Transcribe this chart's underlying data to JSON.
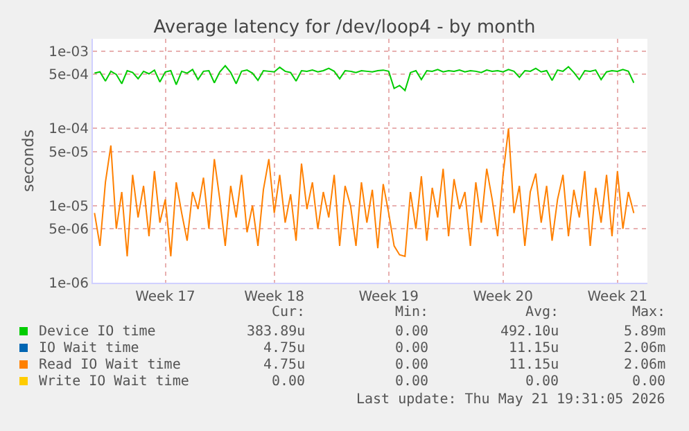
{
  "chart_data": {
    "type": "line",
    "title": "Average latency for /dev/loop4 - by month",
    "ylabel": "seconds",
    "log": "y",
    "grid": true,
    "legend": "bottom left",
    "marker": "none",
    "line_style": "solid",
    "ylim": [
      1e-06,
      0.00145
    ],
    "yticks": [
      {
        "value": 1e-06,
        "label": "1e-06"
      },
      {
        "value": 5e-06,
        "label": "5e-06"
      },
      {
        "value": 1e-05,
        "label": "1e-05"
      },
      {
        "value": 5e-05,
        "label": "5e-05"
      },
      {
        "value": 0.0001,
        "label": "1e-04"
      },
      {
        "value": 0.0005,
        "label": "5e-04"
      },
      {
        "value": 0.001,
        "label": "1e-03"
      }
    ],
    "categories": [
      null,
      null,
      null,
      null,
      null,
      null,
      null,
      null,
      null,
      null,
      null,
      null,
      null,
      "Week 17",
      null,
      null,
      null,
      null,
      null,
      null,
      null,
      null,
      null,
      null,
      null,
      null,
      null,
      null,
      null,
      null,
      null,
      null,
      null,
      "Week 18",
      null,
      null,
      null,
      null,
      null,
      null,
      null,
      null,
      null,
      null,
      null,
      null,
      null,
      null,
      null,
      null,
      null,
      null,
      null,
      null,
      "Week 19",
      null,
      null,
      null,
      null,
      null,
      null,
      null,
      null,
      null,
      null,
      null,
      null,
      null,
      null,
      null,
      null,
      null,
      null,
      null,
      null,
      "Week 20",
      null,
      null,
      null,
      null,
      null,
      null,
      null,
      null,
      null,
      null,
      null,
      null,
      null,
      null,
      null,
      null,
      null,
      null,
      null,
      null,
      "Week 21",
      null,
      null,
      null
    ],
    "series": [
      {
        "name": "Device IO time",
        "color": "#00cc00",
        "values": [
          0.00052,
          0.00054,
          0.00041,
          0.00055,
          0.0005,
          0.00038,
          0.00056,
          0.00053,
          0.00044,
          0.00055,
          0.00051,
          0.00057,
          0.0004,
          0.00054,
          0.00056,
          0.00037,
          0.00055,
          0.00052,
          0.00058,
          0.00043,
          0.00055,
          0.00056,
          0.00039,
          0.00054,
          0.00065,
          0.00053,
          0.00038,
          0.00055,
          0.00057,
          0.00052,
          0.00042,
          0.00056,
          0.00055,
          0.00054,
          0.00062,
          0.00055,
          0.00053,
          0.00041,
          0.00056,
          0.00055,
          0.00057,
          0.00054,
          0.00056,
          0.0006,
          0.00055,
          0.00044,
          0.00056,
          0.00055,
          0.00053,
          0.00056,
          0.00055,
          0.00054,
          0.00056,
          0.00057,
          0.00055,
          0.00033,
          0.00036,
          0.00031,
          0.00053,
          0.00056,
          0.00043,
          0.00056,
          0.00055,
          0.00058,
          0.00054,
          0.00056,
          0.00055,
          0.00057,
          0.00054,
          0.00056,
          0.00055,
          0.00053,
          0.00057,
          0.00055,
          0.00056,
          0.00054,
          0.00058,
          0.00055,
          0.00046,
          0.00056,
          0.00055,
          0.0006,
          0.00054,
          0.00056,
          0.00042,
          0.00057,
          0.00055,
          0.00063,
          0.00053,
          0.00043,
          0.00056,
          0.00055,
          0.00057,
          0.00043,
          0.00054,
          0.00056,
          0.00055,
          0.00058,
          0.00055,
          0.00039
        ]
      },
      {
        "name": "IO Wait time",
        "color": "#0066b3",
        "values": [
          null,
          null,
          null,
          null,
          null,
          null,
          null,
          null,
          null,
          null,
          null,
          null,
          null,
          null,
          null,
          null,
          null,
          null,
          null,
          null,
          null,
          null,
          null,
          null,
          null,
          null,
          null,
          null,
          null,
          null,
          null,
          null,
          null,
          null,
          null,
          null,
          null,
          null,
          null,
          null,
          null,
          null,
          null,
          null,
          null,
          null,
          null,
          null,
          null,
          null,
          null,
          null,
          null,
          null,
          null,
          null,
          null,
          null,
          null,
          null,
          null,
          null,
          null,
          null,
          null,
          null,
          null,
          null,
          null,
          null,
          null,
          null,
          null,
          null,
          null,
          null,
          null,
          null,
          null,
          null,
          null,
          null,
          null,
          null,
          null,
          null,
          null,
          null,
          null,
          null,
          null,
          null,
          null,
          null,
          null,
          null,
          null,
          null,
          null,
          null
        ]
      },
      {
        "name": "Read IO Wait time",
        "color": "#ff8000",
        "values": [
          8e-06,
          3e-06,
          2e-05,
          6e-05,
          5e-06,
          1.5e-05,
          2.2e-06,
          2.5e-05,
          7e-06,
          1.8e-05,
          4e-06,
          2.8e-05,
          6e-06,
          1.2e-05,
          2.2e-06,
          2e-05,
          8e-06,
          3.5e-06,
          1.5e-05,
          9e-06,
          2.3e-05,
          5e-06,
          4e-05,
          1.2e-05,
          3e-06,
          1.8e-05,
          7e-06,
          2.5e-05,
          4.5e-06,
          1e-05,
          3e-06,
          1.6e-05,
          4e-05,
          8e-06,
          2.5e-05,
          6e-06,
          1.4e-05,
          3.5e-06,
          3.5e-05,
          9e-06,
          2e-05,
          5e-06,
          1.5e-05,
          7e-06,
          2.5e-05,
          3e-06,
          1.8e-05,
          1e-05,
          3e-06,
          2e-05,
          6e-06,
          1.6e-05,
          2.8e-06,
          1.9e-05,
          8e-06,
          3e-06,
          2.3e-06,
          2.2e-06,
          1.5e-05,
          5e-06,
          2.4e-05,
          3.5e-06,
          1.7e-05,
          7e-06,
          3e-05,
          4e-06,
          2.2e-05,
          9e-06,
          1.5e-05,
          3e-06,
          2e-05,
          6e-06,
          3e-05,
          1.2e-05,
          4e-06,
          2.5e-05,
          0.0001,
          8e-06,
          1.8e-05,
          3e-06,
          1.5e-05,
          2.6e-05,
          6e-06,
          1.8e-05,
          3.5e-06,
          1.2e-05,
          2.5e-05,
          4e-06,
          1.6e-05,
          7e-06,
          2.8e-05,
          3e-06,
          1.7e-05,
          6e-06,
          2.5e-05,
          4e-06,
          2.8e-05,
          5e-06,
          1.5e-05,
          8e-06
        ]
      },
      {
        "name": "Write IO Wait time",
        "color": "#ffcc00",
        "values": [
          null,
          null,
          null,
          null,
          null,
          null,
          null,
          null,
          null,
          null,
          null,
          null,
          null,
          null,
          null,
          null,
          null,
          null,
          null,
          null,
          null,
          null,
          null,
          null,
          null,
          null,
          null,
          null,
          null,
          null,
          null,
          null,
          null,
          null,
          null,
          null,
          null,
          null,
          null,
          null,
          null,
          null,
          null,
          null,
          null,
          null,
          null,
          null,
          null,
          null,
          null,
          null,
          null,
          null,
          null,
          null,
          null,
          null,
          null,
          null,
          null,
          null,
          null,
          null,
          null,
          null,
          null,
          null,
          null,
          null,
          null,
          null,
          null,
          null,
          null,
          null,
          null,
          null,
          null,
          null,
          null,
          null,
          null,
          null,
          null,
          null,
          null,
          null,
          null,
          null,
          null,
          null,
          null,
          null,
          null,
          null,
          null,
          null,
          null,
          null
        ]
      }
    ],
    "annotations": [
      "Cur:",
      "Min:",
      "Avg:",
      "Max:",
      "383.89u",
      "0.00",
      "492.10u",
      "5.89m",
      "4.75u",
      "0.00",
      "11.15u",
      "2.06m",
      "4.75u",
      "0.00",
      "11.15u",
      "2.06m",
      "0.00",
      "0.00",
      "0.00",
      "0.00",
      "Last update: Thu May 21 19:31:05 2026"
    ]
  }
}
